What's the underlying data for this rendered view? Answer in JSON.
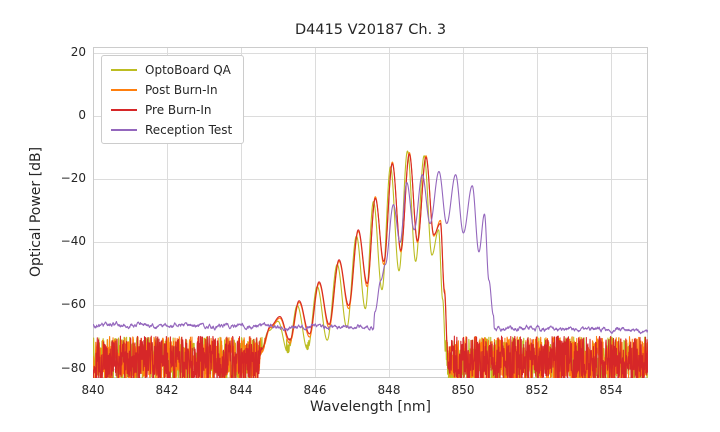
{
  "chart_data": {
    "type": "line",
    "title": "D4415 V20187 Ch. 3",
    "xlabel": "Wavelength [nm]",
    "ylabel": "Optical Power [dB]",
    "xlim": [
      840,
      855
    ],
    "ylim": [
      -83,
      22
    ],
    "grid": true,
    "grid_color": "#dcdcdc",
    "axes_edge_color": "#cccccc",
    "text_color": "#262626",
    "legend_position": "upper left",
    "xticks": {
      "values": [
        840,
        842,
        844,
        846,
        848,
        850,
        852,
        854
      ],
      "labels": [
        "840",
        "842",
        "844",
        "846",
        "848",
        "850",
        "852",
        "854"
      ]
    },
    "yticks": {
      "values": [
        20,
        0,
        -20,
        -40,
        -60,
        -80
      ],
      "labels": [
        "20",
        "0",
        "−20",
        "−40",
        "−60",
        "−80"
      ]
    },
    "series": [
      {
        "name": "OptoBoard QA",
        "color": "#bcbd22",
        "line_width": 1.1,
        "seed": 7,
        "noise": {
          "floor": [
            [
              840,
              -77.5
            ],
            [
              855,
              -77.5
            ]
          ],
          "amplitude": 7.5,
          "smooth": false
        },
        "signal": [
          [
            840,
            -120
          ],
          [
            844.25,
            -120
          ],
          [
            844.5,
            -76
          ],
          [
            844.75,
            -68
          ],
          [
            845.0,
            -65
          ],
          [
            845.27,
            -75
          ],
          [
            845.52,
            -60
          ],
          [
            845.8,
            -74
          ],
          [
            846.06,
            -54
          ],
          [
            846.33,
            -71
          ],
          [
            846.6,
            -47
          ],
          [
            846.86,
            -67
          ],
          [
            847.12,
            -38
          ],
          [
            847.36,
            -61
          ],
          [
            847.58,
            -27
          ],
          [
            847.81,
            -55
          ],
          [
            848.04,
            -16
          ],
          [
            848.27,
            -49
          ],
          [
            848.5,
            -11
          ],
          [
            848.72,
            -46
          ],
          [
            848.95,
            -12.5
          ],
          [
            849.16,
            -44
          ],
          [
            849.34,
            -36
          ],
          [
            849.45,
            -58
          ],
          [
            849.55,
            -80
          ],
          [
            849.65,
            -120
          ],
          [
            855,
            -120
          ]
        ]
      },
      {
        "name": "Post Burn-In",
        "color": "#ff7f0e",
        "line_width": 1.1,
        "seed": 13,
        "noise": {
          "floor": [
            [
              840,
              -77
            ],
            [
              855,
              -77
            ]
          ],
          "amplitude": 7.2,
          "smooth": false
        },
        "signal": [
          [
            840,
            -120
          ],
          [
            844.3,
            -120
          ],
          [
            844.55,
            -75
          ],
          [
            844.8,
            -67
          ],
          [
            845.05,
            -64
          ],
          [
            845.32,
            -72
          ],
          [
            845.57,
            -59
          ],
          [
            845.85,
            -70
          ],
          [
            846.11,
            -53
          ],
          [
            846.38,
            -67
          ],
          [
            846.65,
            -46
          ],
          [
            846.91,
            -61
          ],
          [
            847.17,
            -36.5
          ],
          [
            847.41,
            -54
          ],
          [
            847.63,
            -25.5
          ],
          [
            847.86,
            -47
          ],
          [
            848.09,
            -14.5
          ],
          [
            848.32,
            -43
          ],
          [
            848.55,
            -11.5
          ],
          [
            848.77,
            -40
          ],
          [
            849.0,
            -12.5
          ],
          [
            849.21,
            -38
          ],
          [
            849.39,
            -33
          ],
          [
            849.5,
            -55
          ],
          [
            849.6,
            -78
          ],
          [
            849.7,
            -120
          ],
          [
            855,
            -120
          ]
        ]
      },
      {
        "name": "Pre Burn-In",
        "color": "#d62728",
        "line_width": 1.1,
        "seed": 29,
        "noise": {
          "floor": [
            [
              840,
              -77.5
            ],
            [
              855,
              -77.5
            ]
          ],
          "amplitude": 7.8,
          "smooth": false
        },
        "signal": [
          [
            840,
            -120
          ],
          [
            844.3,
            -120
          ],
          [
            844.55,
            -74
          ],
          [
            844.8,
            -66.5
          ],
          [
            845.05,
            -63.5
          ],
          [
            845.32,
            -71
          ],
          [
            845.57,
            -58.5
          ],
          [
            845.85,
            -69
          ],
          [
            846.11,
            -52.5
          ],
          [
            846.38,
            -66
          ],
          [
            846.65,
            -45.5
          ],
          [
            846.91,
            -60
          ],
          [
            847.17,
            -36
          ],
          [
            847.41,
            -53
          ],
          [
            847.63,
            -26
          ],
          [
            847.86,
            -46
          ],
          [
            848.09,
            -15
          ],
          [
            848.32,
            -42.5
          ],
          [
            848.55,
            -12
          ],
          [
            848.77,
            -39.5
          ],
          [
            849.0,
            -13
          ],
          [
            849.21,
            -37.5
          ],
          [
            849.39,
            -34
          ],
          [
            849.5,
            -56
          ],
          [
            849.6,
            -80
          ],
          [
            849.7,
            -120
          ],
          [
            855,
            -120
          ]
        ]
      },
      {
        "name": "Reception Test",
        "color": "#9467bd",
        "line_width": 1.1,
        "seed": 43,
        "noise": {
          "floor": [
            [
              840,
              -66.3
            ],
            [
              846,
              -66.8
            ],
            [
              850.8,
              -67.2
            ],
            [
              855,
              -67.8
            ]
          ],
          "amplitude": 1.1,
          "smooth": true
        },
        "signal": [
          [
            840,
            -120
          ],
          [
            847.45,
            -120
          ],
          [
            847.62,
            -62
          ],
          [
            847.78,
            -52
          ],
          [
            847.9,
            -47
          ],
          [
            848.12,
            -28
          ],
          [
            848.3,
            -40
          ],
          [
            848.48,
            -21
          ],
          [
            848.68,
            -36
          ],
          [
            848.9,
            -18.5
          ],
          [
            849.11,
            -34
          ],
          [
            849.35,
            -17.5
          ],
          [
            849.56,
            -34
          ],
          [
            849.8,
            -18.5
          ],
          [
            850.01,
            -37
          ],
          [
            850.25,
            -22
          ],
          [
            850.43,
            -43
          ],
          [
            850.58,
            -31
          ],
          [
            850.7,
            -52
          ],
          [
            850.82,
            -63
          ],
          [
            850.95,
            -120
          ],
          [
            855,
            -120
          ]
        ]
      }
    ]
  }
}
